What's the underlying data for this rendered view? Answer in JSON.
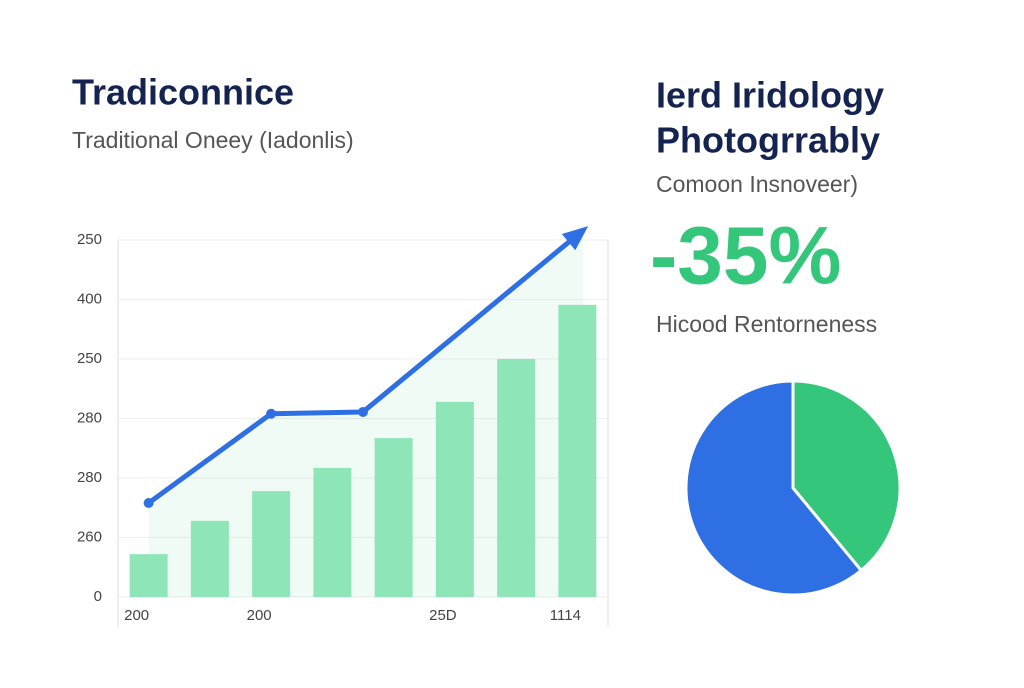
{
  "chart_data": [
    {
      "type": "bar",
      "title": "Tradiconnice",
      "subtitle": "Traditional Oneey (Iadonlis)",
      "categories": [
        "200",
        null,
        "200",
        null,
        null,
        "25D",
        null,
        "1114"
      ],
      "values": [
        72,
        128,
        178,
        217,
        267,
        328,
        400,
        491
      ],
      "color": "#8ee6b8",
      "line": {
        "color": "#2f6fe4",
        "x": [
          0.5,
          2.5,
          4,
          7.6
        ],
        "values": [
          158,
          308,
          311,
          617
        ]
      },
      "xlim": [
        0,
        8
      ],
      "ylim": [
        0,
        600
      ],
      "yticks": [
        0,
        {
          "value": 100,
          "label": "260"
        },
        {
          "value": 200,
          "label": "280"
        },
        {
          "value": 300,
          "label": "280"
        },
        {
          "value": 400,
          "label": "250"
        },
        {
          "value": 500,
          "label": "400"
        },
        {
          "value": 600,
          "label": "250"
        }
      ],
      "grid": true
    },
    {
      "type": "pie",
      "title": "Ierd Iridology",
      "title2": "Photogrrably",
      "subtitle": "Comoon Insnoveer)",
      "stat": "-35%",
      "stat_label": "Hicood Rentorneness",
      "values": [
        39,
        61
      ],
      "colors": [
        "#34c77b",
        "#2f6fe4"
      ]
    }
  ]
}
